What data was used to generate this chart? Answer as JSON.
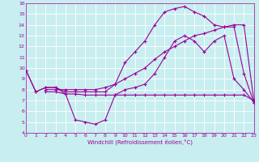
{
  "xlabel": "Windchill (Refroidissement éolien,°C)",
  "xlim": [
    0,
    23
  ],
  "ylim": [
    4,
    16
  ],
  "yticks": [
    4,
    5,
    6,
    7,
    8,
    9,
    10,
    11,
    12,
    13,
    14,
    15,
    16
  ],
  "xticks": [
    0,
    1,
    2,
    3,
    4,
    5,
    6,
    7,
    8,
    9,
    10,
    11,
    12,
    13,
    14,
    15,
    16,
    17,
    18,
    19,
    20,
    21,
    22,
    23
  ],
  "bg_color": "#c8eef0",
  "line_color": "#990099",
  "grid_color": "#ffffff",
  "series": {
    "arch": {
      "x": [
        0,
        1,
        2,
        3,
        4,
        5,
        6,
        7,
        8,
        9,
        10,
        11,
        12,
        13,
        14,
        15,
        16,
        17,
        18,
        19,
        20,
        21,
        22,
        23
      ],
      "y": [
        9.8,
        7.8,
        8.2,
        8.2,
        7.6,
        5.2,
        5.0,
        4.8,
        5.2,
        7.5,
        8.0,
        8.2,
        8.5,
        9.5,
        11.0,
        12.5,
        13.0,
        12.5,
        11.5,
        12.5,
        13.0,
        9.0,
        8.0,
        6.8
      ]
    },
    "upper_arch": {
      "x": [
        0,
        1,
        2,
        3,
        4,
        5,
        6,
        7,
        8,
        9,
        10,
        11,
        12,
        13,
        14,
        15,
        16,
        17,
        18,
        19,
        20,
        21,
        22,
        23
      ],
      "y": [
        9.8,
        7.8,
        8.2,
        8.2,
        7.8,
        7.8,
        7.8,
        7.8,
        7.8,
        8.5,
        10.5,
        11.5,
        12.5,
        14.0,
        15.2,
        15.5,
        15.7,
        15.2,
        14.8,
        14.0,
        13.8,
        13.8,
        9.5,
        6.8
      ]
    },
    "diag1": {
      "x": [
        2,
        3,
        4,
        5,
        6,
        7,
        8,
        9,
        10,
        11,
        12,
        13,
        14,
        15,
        16,
        17,
        18,
        19,
        20,
        21,
        22,
        23
      ],
      "y": [
        8.0,
        8.0,
        8.0,
        8.0,
        8.0,
        8.0,
        8.2,
        8.5,
        9.0,
        9.5,
        10.0,
        10.8,
        11.5,
        12.0,
        12.5,
        13.0,
        13.2,
        13.5,
        13.8,
        14.0,
        14.0,
        7.0
      ]
    },
    "flat": {
      "x": [
        2,
        3,
        4,
        5,
        6,
        7,
        8,
        9,
        10,
        11,
        12,
        13,
        14,
        15,
        16,
        17,
        18,
        19,
        20,
        21,
        22,
        23
      ],
      "y": [
        7.8,
        7.8,
        7.6,
        7.6,
        7.5,
        7.5,
        7.5,
        7.5,
        7.5,
        7.5,
        7.5,
        7.5,
        7.5,
        7.5,
        7.5,
        7.5,
        7.5,
        7.5,
        7.5,
        7.5,
        7.5,
        7.0
      ]
    }
  }
}
